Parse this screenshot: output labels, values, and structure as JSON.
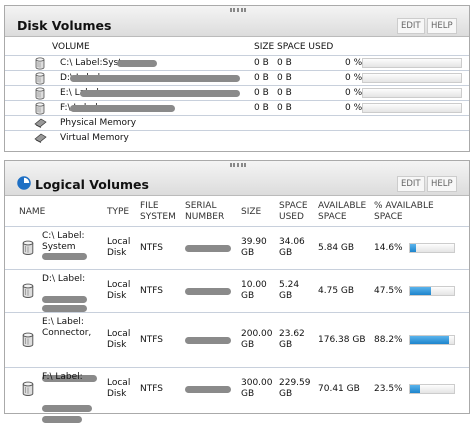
{
  "disk_volumes": {
    "title": "Disk Volumes",
    "buttons": [
      "EDIT",
      "HELP"
    ],
    "columns": [
      "VOLUME",
      "SIZE",
      "SPACE USED"
    ],
    "rows": [
      {
        "volume": "C:\\ Label:System",
        "size": "0 B",
        "space_used": "0 B",
        "percent": {
          "value": 0,
          "label": "0 %"
        }
      },
      {
        "volume": "D:\\ Label:",
        "size": "0 B",
        "space_used": "0 B",
        "percent": {
          "value": 0,
          "label": "0 %"
        }
      },
      {
        "volume": "E:\\ Label:",
        "size": "0 B",
        "space_used": "0 B",
        "percent": {
          "value": 0,
          "label": "0 %"
        }
      },
      {
        "volume": "F:\\ Label:",
        "size": "0 B",
        "space_used": "0 B",
        "percent": {
          "value": 0,
          "label": "0 %"
        }
      },
      {
        "volume": "Physical Memory"
      },
      {
        "volume": "Virtual Memory"
      }
    ]
  },
  "logical_volumes": {
    "title": "Logical Volumes",
    "buttons": [
      "EDIT",
      "HELP"
    ],
    "columns": [
      "NAME",
      "TYPE",
      "FILE SYSTEM",
      "SERIAL NUMBER",
      "SIZE",
      "SPACE USED",
      "AVAILABLE SPACE",
      "% AVAILABLE SPACE"
    ],
    "rows": [
      {
        "name": "C:\\ Label: System",
        "type": "Local Disk",
        "file_system": "NTFS",
        "size": "39.90 GB",
        "space_used": "34.06 GB",
        "available": "5.84 GB",
        "percent": {
          "value": 14.6,
          "label": "14.6%"
        }
      },
      {
        "name": "D:\\ Label:",
        "type": "Local Disk",
        "file_system": "NTFS",
        "size": "10.00 GB",
        "space_used": "5.24 GB",
        "available": "4.75 GB",
        "percent": {
          "value": 47.5,
          "label": "47.5%"
        }
      },
      {
        "name": "E:\\ Label: Connector,",
        "type": "Local Disk",
        "file_system": "NTFS",
        "size": "200.00 GB",
        "space_used": "23.62 GB",
        "available": "176.38 GB",
        "percent": {
          "value": 88.2,
          "label": "88.2%"
        }
      },
      {
        "name": "F:\\ Label:",
        "type": "Local Disk",
        "file_system": "NTFS",
        "size": "300.00 GB",
        "space_used": "229.59 GB",
        "available": "70.41 GB",
        "percent": {
          "value": 23.5,
          "label": "23.5%"
        }
      }
    ]
  }
}
